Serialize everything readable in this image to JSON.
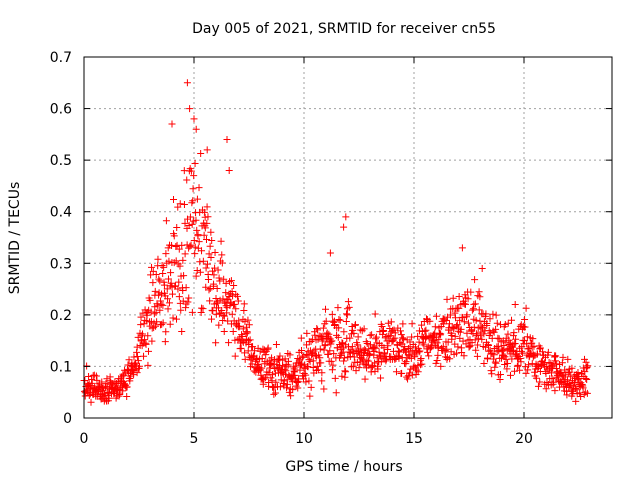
{
  "chart_data": {
    "type": "scatter",
    "title": "Day 005 of 2021, SRMTID for receiver cn55",
    "xlabel": "GPS time / hours",
    "ylabel": "SRMTID / TECUs",
    "xlim": [
      0,
      24
    ],
    "ylim": [
      0,
      0.7
    ],
    "xticks": [
      0,
      5,
      10,
      15,
      20
    ],
    "yticks": [
      0,
      0.1,
      0.2,
      0.3,
      0.4,
      0.5,
      0.6,
      0.7
    ],
    "grid": true,
    "legend": "none",
    "marker": "+",
    "color": "#ff0000",
    "series": [
      {
        "name": "SRMTID",
        "envelope": {
          "x": [
            0.0,
            0.5,
            1.0,
            1.5,
            2.0,
            2.5,
            3.0,
            3.5,
            4.0,
            4.5,
            5.0,
            5.5,
            6.0,
            6.5,
            7.0,
            7.5,
            8.0,
            8.5,
            9.0,
            9.5,
            10.0,
            10.5,
            11.0,
            11.5,
            12.0,
            12.5,
            13.0,
            13.5,
            14.0,
            14.5,
            15.0,
            15.5,
            16.0,
            16.5,
            17.0,
            17.5,
            18.0,
            18.5,
            19.0,
            19.5,
            20.0,
            20.5,
            21.0,
            21.5,
            22.0,
            22.5,
            22.9
          ],
          "center": [
            0.06,
            0.055,
            0.05,
            0.06,
            0.08,
            0.12,
            0.2,
            0.25,
            0.27,
            0.3,
            0.38,
            0.3,
            0.26,
            0.22,
            0.18,
            0.14,
            0.1,
            0.09,
            0.085,
            0.09,
            0.1,
            0.12,
            0.14,
            0.16,
            0.15,
            0.13,
            0.12,
            0.13,
            0.14,
            0.12,
            0.12,
            0.15,
            0.16,
            0.16,
            0.17,
            0.19,
            0.18,
            0.14,
            0.13,
            0.14,
            0.15,
            0.12,
            0.1,
            0.09,
            0.07,
            0.07,
            0.08
          ],
          "spread": [
            0.02,
            0.02,
            0.02,
            0.02,
            0.025,
            0.04,
            0.06,
            0.07,
            0.09,
            0.11,
            0.12,
            0.09,
            0.08,
            0.06,
            0.04,
            0.03,
            0.03,
            0.03,
            0.03,
            0.03,
            0.03,
            0.04,
            0.05,
            0.06,
            0.06,
            0.04,
            0.04,
            0.04,
            0.04,
            0.04,
            0.04,
            0.04,
            0.04,
            0.04,
            0.05,
            0.05,
            0.05,
            0.04,
            0.04,
            0.04,
            0.04,
            0.03,
            0.03,
            0.03,
            0.025,
            0.025,
            0.025
          ]
        },
        "peaks": [
          {
            "x": 4.7,
            "y": 0.65
          },
          {
            "x": 4.8,
            "y": 0.6
          },
          {
            "x": 4.0,
            "y": 0.57
          },
          {
            "x": 5.0,
            "y": 0.58
          },
          {
            "x": 5.1,
            "y": 0.56
          },
          {
            "x": 6.5,
            "y": 0.54
          },
          {
            "x": 5.6,
            "y": 0.52
          },
          {
            "x": 6.6,
            "y": 0.48
          },
          {
            "x": 11.9,
            "y": 0.39
          },
          {
            "x": 11.8,
            "y": 0.37
          },
          {
            "x": 11.2,
            "y": 0.32
          },
          {
            "x": 17.2,
            "y": 0.33
          },
          {
            "x": 18.1,
            "y": 0.29
          },
          {
            "x": 16.5,
            "y": 0.23
          },
          {
            "x": 19.6,
            "y": 0.22
          }
        ]
      }
    ]
  }
}
